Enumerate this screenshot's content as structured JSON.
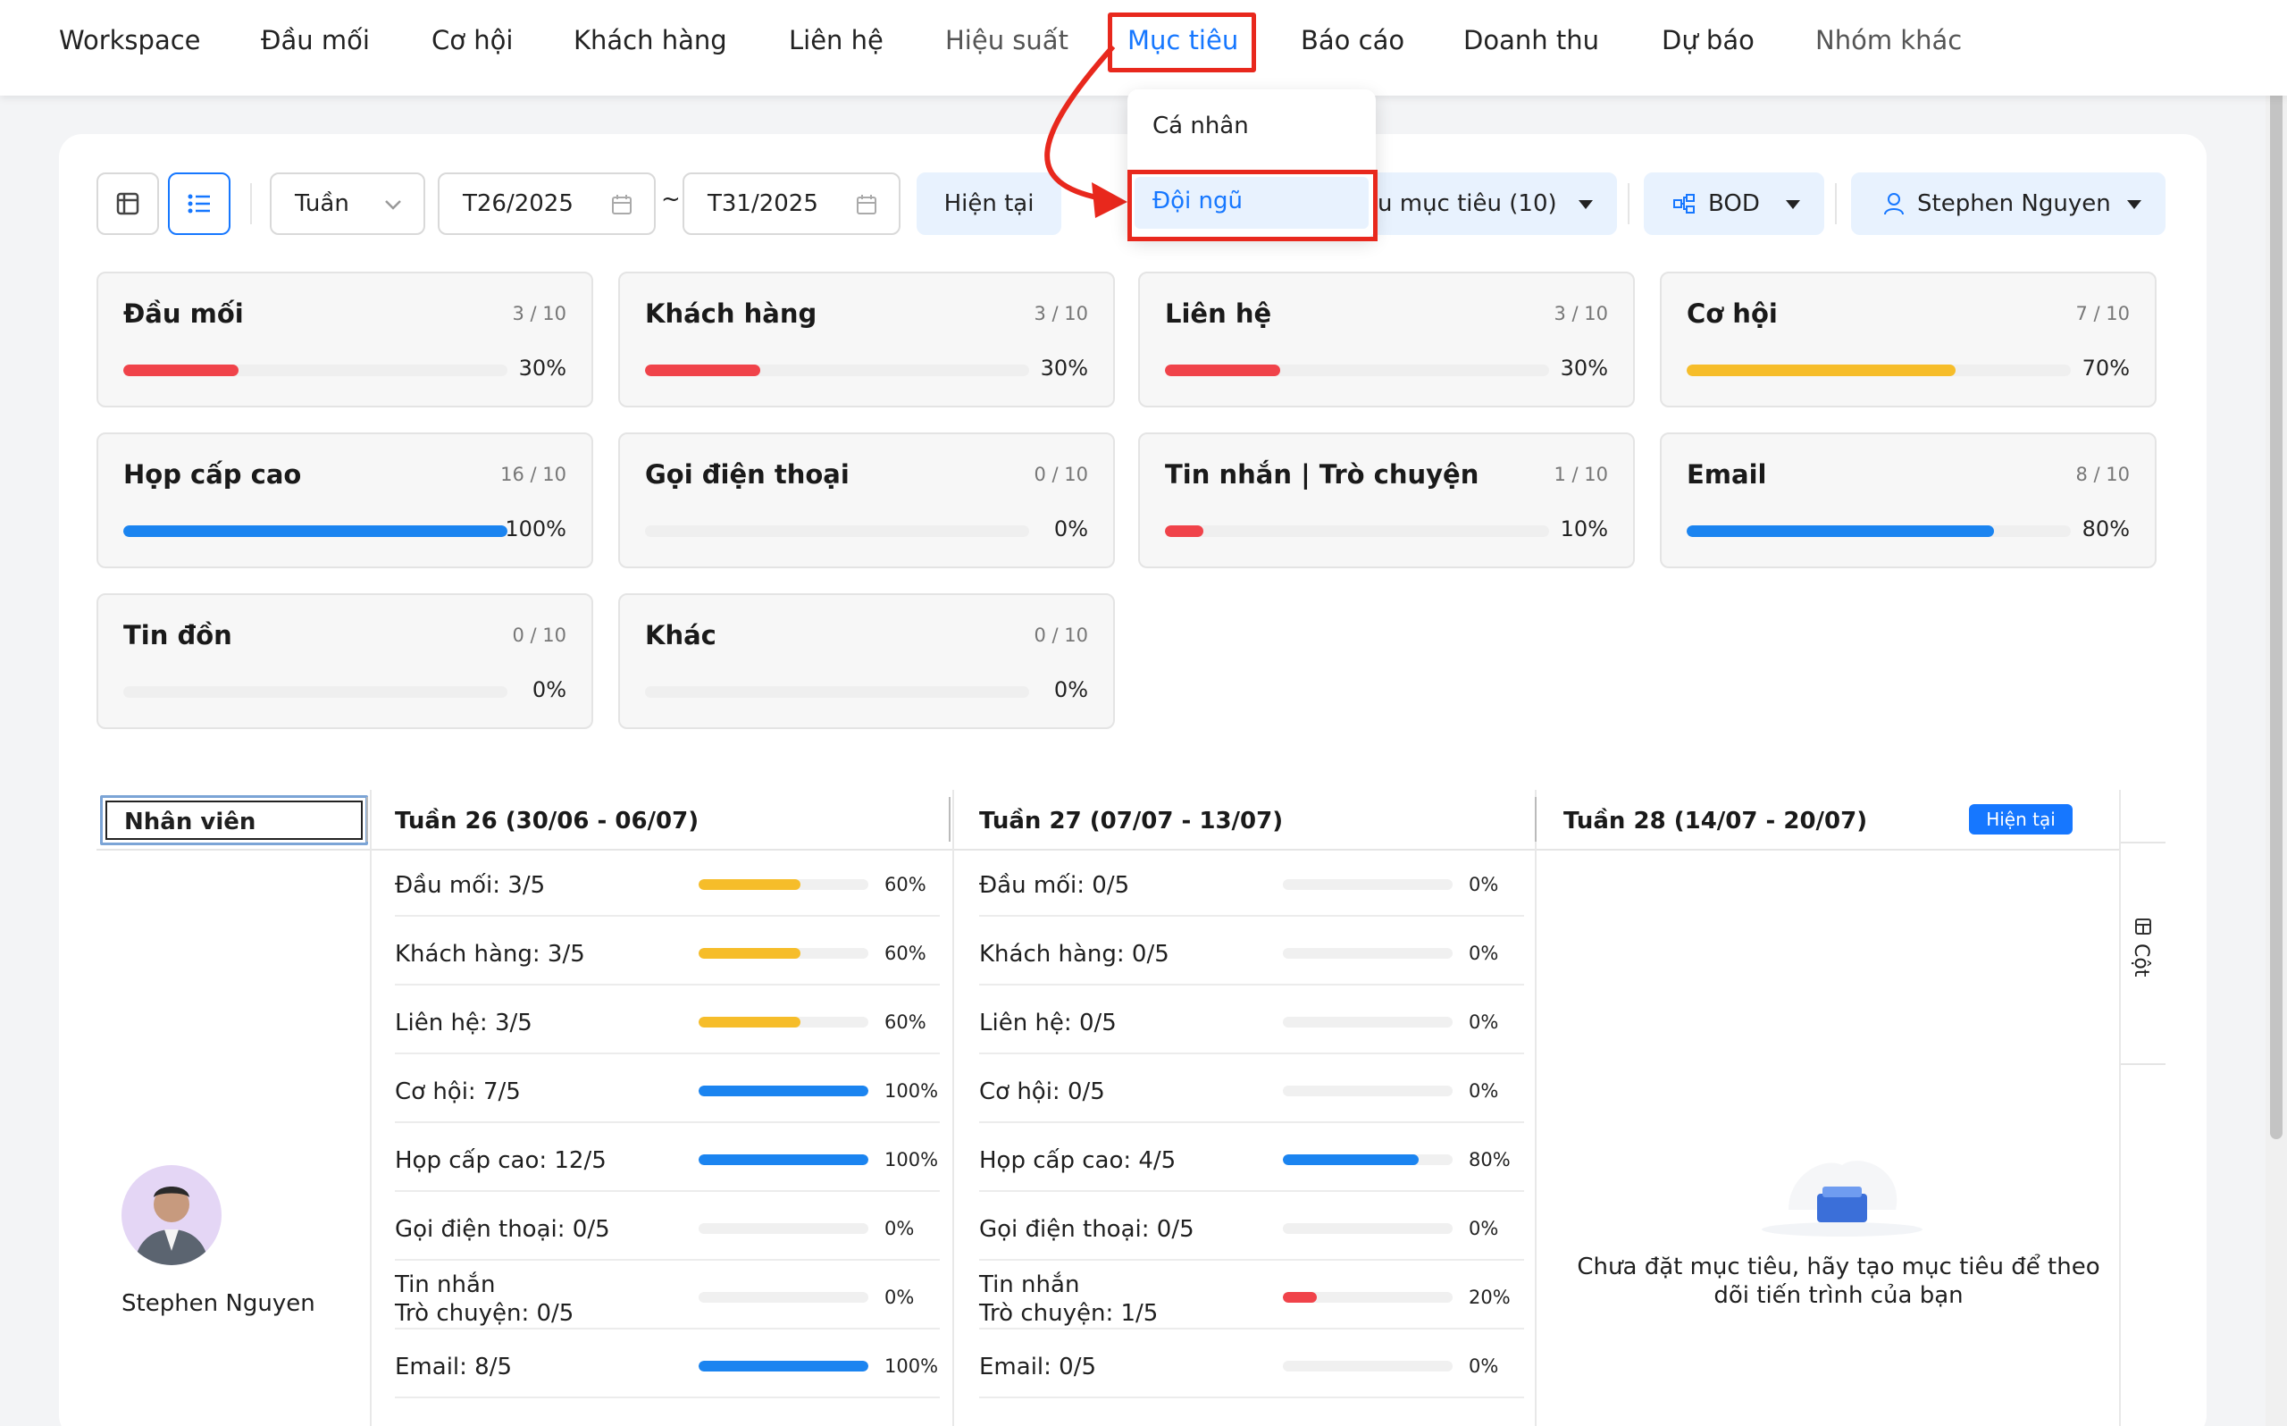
{
  "nav": {
    "items": [
      "Workspace",
      "Đầu mối",
      "Cơ hội",
      "Khách hàng",
      "Liên hệ",
      "Hiệu suất",
      "Mục tiêu",
      "Báo cáo",
      "Doanh thu",
      "Dự báo",
      "Nhóm khác"
    ],
    "active": "Mục tiêu"
  },
  "dropdown": {
    "items": [
      "Cá nhân",
      "Đội ngũ"
    ],
    "selected": "Đội ngũ"
  },
  "toolbar": {
    "period": "Tuần",
    "from": "T26/2025",
    "tilde": "~",
    "to": "T31/2025",
    "current_button": "Hiện tại",
    "goal_filter": "ệu mục tiêu (10)",
    "team": "BOD",
    "user": "Stephen Nguyen"
  },
  "stats": [
    {
      "title": "Đầu mối",
      "fraction": "3 / 10",
      "percent": "30%",
      "value": 0.3,
      "color": "#f0434a"
    },
    {
      "title": "Khách hàng",
      "fraction": "3 / 10",
      "percent": "30%",
      "value": 0.3,
      "color": "#f0434a"
    },
    {
      "title": "Liên hệ",
      "fraction": "3 / 10",
      "percent": "30%",
      "value": 0.3,
      "color": "#f0434a"
    },
    {
      "title": "Cơ hội",
      "fraction": "7 / 10",
      "percent": "70%",
      "value": 0.7,
      "color": "#f6bd2a"
    },
    {
      "title": "Họp cấp cao",
      "fraction": "16 / 10",
      "percent": "100%",
      "value": 1.0,
      "color": "#1b84f0"
    },
    {
      "title": "Gọi điện thoại",
      "fraction": "0 / 10",
      "percent": "0%",
      "value": 0,
      "color": "#1b84f0"
    },
    {
      "title": "Tin nhắn | Trò chuyện",
      "fraction": "1 / 10",
      "percent": "10%",
      "value": 0.1,
      "color": "#f0434a"
    },
    {
      "title": "Email",
      "fraction": "8 / 10",
      "percent": "80%",
      "value": 0.8,
      "color": "#1b84f0"
    },
    {
      "title": "Tin đồn",
      "fraction": "0 / 10",
      "percent": "0%",
      "value": 0,
      "color": "#1b84f0"
    },
    {
      "title": "Khác",
      "fraction": "0 / 10",
      "percent": "0%",
      "value": 0,
      "color": "#1b84f0"
    }
  ],
  "table": {
    "employee_header": "Nhân viên",
    "employee_name": "Stephen Nguyen",
    "weeks": [
      {
        "title": "Tuần 26 (30/06 - 06/07)",
        "rows": [
          {
            "label": "Đầu mối: 3/5",
            "percent": "60%",
            "value": 0.6,
            "color": "#f6bd2a"
          },
          {
            "label": "Khách hàng: 3/5",
            "percent": "60%",
            "value": 0.6,
            "color": "#f6bd2a"
          },
          {
            "label": "Liên hệ: 3/5",
            "percent": "60%",
            "value": 0.6,
            "color": "#f6bd2a"
          },
          {
            "label": "Cơ hội: 7/5",
            "percent": "100%",
            "value": 1.0,
            "color": "#1b84f0"
          },
          {
            "label": "Họp cấp cao: 12/5",
            "percent": "100%",
            "value": 1.0,
            "color": "#1b84f0"
          },
          {
            "label": "Gọi điện thoại: 0/5",
            "percent": "0%",
            "value": 0,
            "color": "#1b84f0"
          },
          {
            "label": "Tin nhắn\nTrò chuyện: 0/5",
            "percent": "0%",
            "value": 0,
            "color": "#1b84f0"
          },
          {
            "label": "Email: 8/5",
            "percent": "100%",
            "value": 1.0,
            "color": "#1b84f0"
          }
        ]
      },
      {
        "title": "Tuần 27 (07/07 - 13/07)",
        "rows": [
          {
            "label": "Đầu mối: 0/5",
            "percent": "0%",
            "value": 0,
            "color": "#1b84f0"
          },
          {
            "label": "Khách hàng: 0/5",
            "percent": "0%",
            "value": 0,
            "color": "#1b84f0"
          },
          {
            "label": "Liên hệ: 0/5",
            "percent": "0%",
            "value": 0,
            "color": "#1b84f0"
          },
          {
            "label": "Cơ hội: 0/5",
            "percent": "0%",
            "value": 0,
            "color": "#1b84f0"
          },
          {
            "label": "Họp cấp cao: 4/5",
            "percent": "80%",
            "value": 0.8,
            "color": "#1b84f0"
          },
          {
            "label": "Gọi điện thoại: 0/5",
            "percent": "0%",
            "value": 0,
            "color": "#1b84f0"
          },
          {
            "label": "Tin nhắn\nTrò chuyện: 1/5",
            "percent": "20%",
            "value": 0.2,
            "color": "#f0434a"
          },
          {
            "label": "Email: 0/5",
            "percent": "0%",
            "value": 0,
            "color": "#1b84f0"
          }
        ]
      },
      {
        "title": "Tuần 28 (14/07 - 20/07)",
        "badge": "Hiện tại",
        "empty_text": "Chưa đặt mục tiêu, hãy tạo mục tiêu để theo dõi tiến trình của bạn"
      }
    ],
    "columns_label": "Cột"
  },
  "colors": {
    "accent": "#1677ff",
    "highlight": "#e8281d",
    "red": "#f0434a",
    "yellow": "#f6bd2a",
    "blue": "#1b84f0"
  }
}
